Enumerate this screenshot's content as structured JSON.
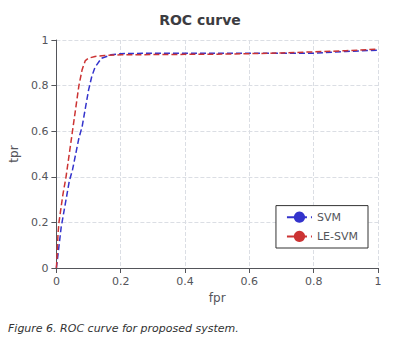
{
  "chart_data": {
    "type": "line",
    "title": "ROC curve",
    "xlabel": "fpr",
    "ylabel": "tpr",
    "annotations": [
      "Figure 6. ROC curve for proposed system."
    ],
    "xlim": [
      0,
      1
    ],
    "ylim": [
      0,
      1
    ],
    "xticks": [
      0,
      0.2,
      0.4,
      0.6,
      0.8,
      1
    ],
    "yticks": [
      0,
      0.2,
      0.4,
      0.6,
      0.8,
      1
    ],
    "grid": true,
    "legend": "lower right",
    "series": [
      {
        "name": "SVM",
        "color": "#3333CC",
        "line_style": "dashed",
        "x": [
          0.0,
          0.005,
          0.01,
          0.015,
          0.02,
          0.03,
          0.04,
          0.05,
          0.06,
          0.07,
          0.08,
          0.09,
          0.1,
          0.11,
          0.12,
          0.14,
          0.17,
          0.2,
          0.3,
          0.4,
          0.5,
          0.6,
          0.7,
          0.8,
          0.9,
          1.0
        ],
        "values": [
          0.0,
          0.06,
          0.12,
          0.18,
          0.22,
          0.3,
          0.38,
          0.43,
          0.5,
          0.57,
          0.62,
          0.7,
          0.78,
          0.84,
          0.88,
          0.92,
          0.935,
          0.94,
          0.942,
          0.942,
          0.942,
          0.942,
          0.942,
          0.942,
          0.95,
          0.955
        ]
      },
      {
        "name": "LE-SVM",
        "color": "#CC3333",
        "line_style": "dashed",
        "x": [
          0.0,
          0.002,
          0.005,
          0.008,
          0.01,
          0.015,
          0.02,
          0.03,
          0.04,
          0.05,
          0.06,
          0.07,
          0.08,
          0.09,
          0.1,
          0.12,
          0.15,
          0.2,
          0.3,
          0.4,
          0.5,
          0.6,
          0.7,
          0.8,
          0.9,
          1.0
        ],
        "values": [
          0.0,
          0.05,
          0.15,
          0.2,
          0.22,
          0.27,
          0.32,
          0.4,
          0.5,
          0.6,
          0.7,
          0.8,
          0.87,
          0.91,
          0.92,
          0.928,
          0.932,
          0.935,
          0.936,
          0.937,
          0.938,
          0.94,
          0.943,
          0.948,
          0.953,
          0.96
        ]
      }
    ]
  }
}
